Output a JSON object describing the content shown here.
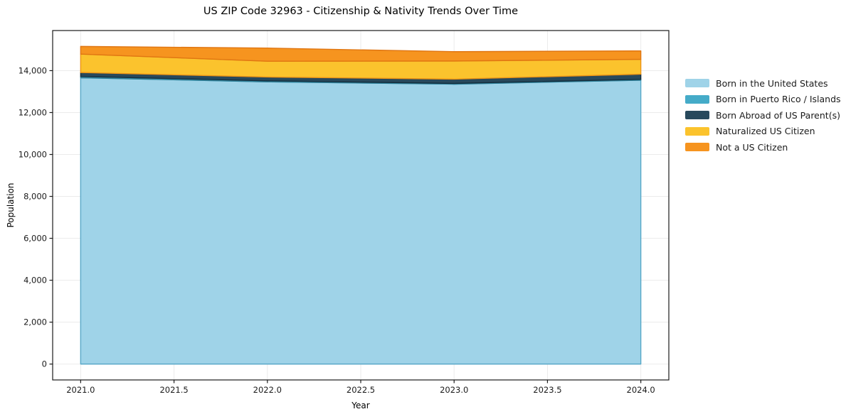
{
  "title": "US ZIP Code 32963 - Citizenship & Nativity Trends Over Time",
  "chart_data": {
    "type": "area",
    "stacked": true,
    "title": "US ZIP Code 32963 - Citizenship & Nativity Trends Over Time",
    "xlabel": "Year",
    "ylabel": "Population",
    "x": [
      2021,
      2022,
      2023,
      2024
    ],
    "series": [
      {
        "name": "Born in the United States",
        "color": "#9FD3E8",
        "edge": "#58a8c8",
        "values": [
          13660,
          13465,
          13355,
          13545
        ]
      },
      {
        "name": "Born in Puerto Rico / Islands",
        "color": "#45ABC8",
        "edge": "#2d7f98",
        "values": [
          60,
          50,
          35,
          40
        ]
      },
      {
        "name": "Born Abroad of US Parent(s)",
        "color": "#28495C",
        "edge": "#152f3e",
        "values": [
          190,
          180,
          205,
          245
        ]
      },
      {
        "name": "Naturalized US Citizen",
        "color": "#FBC32D",
        "edge": "#ed9415",
        "values": [
          880,
          755,
          865,
          710
        ]
      },
      {
        "name": "Not a US Citizen",
        "color": "#F6941F",
        "edge": "#e07612",
        "values": [
          365,
          625,
          445,
          400
        ]
      }
    ],
    "totals": [
      15155,
      15075,
      14905,
      14940
    ],
    "x_ticks": [
      "2021.0",
      "2021.5",
      "2022.0",
      "2022.5",
      "2023.0",
      "2023.5",
      "2024.0"
    ],
    "x_tick_values": [
      2021,
      2021.5,
      2022,
      2022.5,
      2023,
      2023.5,
      2024
    ],
    "y_ticks": [
      "0",
      "2,000",
      "4,000",
      "6,000",
      "8,000",
      "10,000",
      "12,000",
      "14,000"
    ],
    "y_tick_values": [
      0,
      2000,
      4000,
      6000,
      8000,
      10000,
      12000,
      14000
    ],
    "xlim": [
      2020.85,
      2024.15
    ],
    "ylim": [
      -758,
      15913
    ],
    "grid": true,
    "legend_position": "outside-right",
    "colors": {
      "grid": "#ebebeb",
      "spine": "#1a1a1a",
      "tick_label": "#1a1a1a",
      "background": "#ffffff"
    }
  }
}
